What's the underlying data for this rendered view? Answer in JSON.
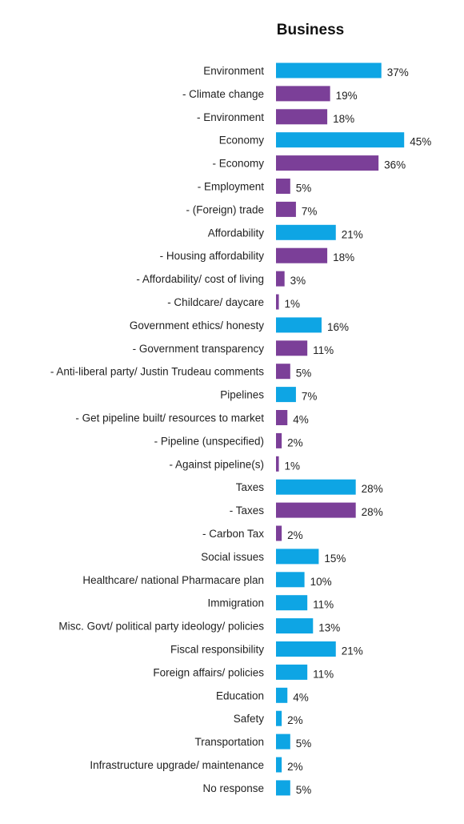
{
  "chart_data": {
    "type": "bar",
    "orientation": "horizontal",
    "title": "Business",
    "xlabel": "",
    "ylabel": "",
    "xlim": [
      0,
      45
    ],
    "grid": false,
    "legend": "none",
    "unit": "%",
    "colors": {
      "category": "#0ea5e4",
      "subcategory": "#7b3f98"
    },
    "categories": [
      "Environment",
      "- Climate change",
      "- Environment",
      "Economy",
      "- Economy",
      "- Employment",
      "- (Foreign) trade",
      "Affordability",
      "- Housing affordability",
      "- Affordability/ cost of living",
      "- Childcare/ daycare",
      "Government ethics/ honesty",
      "- Government transparency",
      "- Anti-liberal party/ Justin Trudeau comments",
      "Pipelines",
      "- Get pipeline built/ resources to market",
      "- Pipeline (unspecified)",
      "- Against pipeline(s)",
      "Taxes",
      "- Taxes",
      "- Carbon Tax",
      "Social issues",
      "Healthcare/ national Pharmacare plan",
      "Immigration",
      "Misc. Govt/ political party ideology/ policies",
      "Fiscal responsibility",
      "Foreign affairs/ policies",
      "Education",
      "Safety",
      "Transportation",
      "Infrastructure upgrade/ maintenance",
      "No response"
    ],
    "values": [
      37,
      19,
      18,
      45,
      36,
      5,
      7,
      21,
      18,
      3,
      1,
      16,
      11,
      5,
      7,
      4,
      2,
      1,
      28,
      28,
      2,
      15,
      10,
      11,
      13,
      21,
      11,
      4,
      2,
      5,
      2,
      5
    ],
    "value_labels": [
      "37%",
      "19%",
      "18%",
      "45%",
      "36%",
      "5%",
      "7%",
      "21%",
      "18%",
      "3%",
      "1%",
      "16%",
      "11%",
      "5%",
      "7%",
      "4%",
      "2%",
      "1%",
      "28%",
      "28%",
      "2%",
      "15%",
      "10%",
      "11%",
      "13%",
      "21%",
      "11%",
      "4%",
      "2%",
      "5%",
      "2%",
      "5%"
    ],
    "bar_kind": [
      "category",
      "subcategory",
      "subcategory",
      "category",
      "subcategory",
      "subcategory",
      "subcategory",
      "category",
      "subcategory",
      "subcategory",
      "subcategory",
      "category",
      "subcategory",
      "subcategory",
      "category",
      "subcategory",
      "subcategory",
      "subcategory",
      "category",
      "subcategory",
      "subcategory",
      "category",
      "category",
      "category",
      "category",
      "category",
      "category",
      "category",
      "category",
      "category",
      "category",
      "category"
    ]
  }
}
